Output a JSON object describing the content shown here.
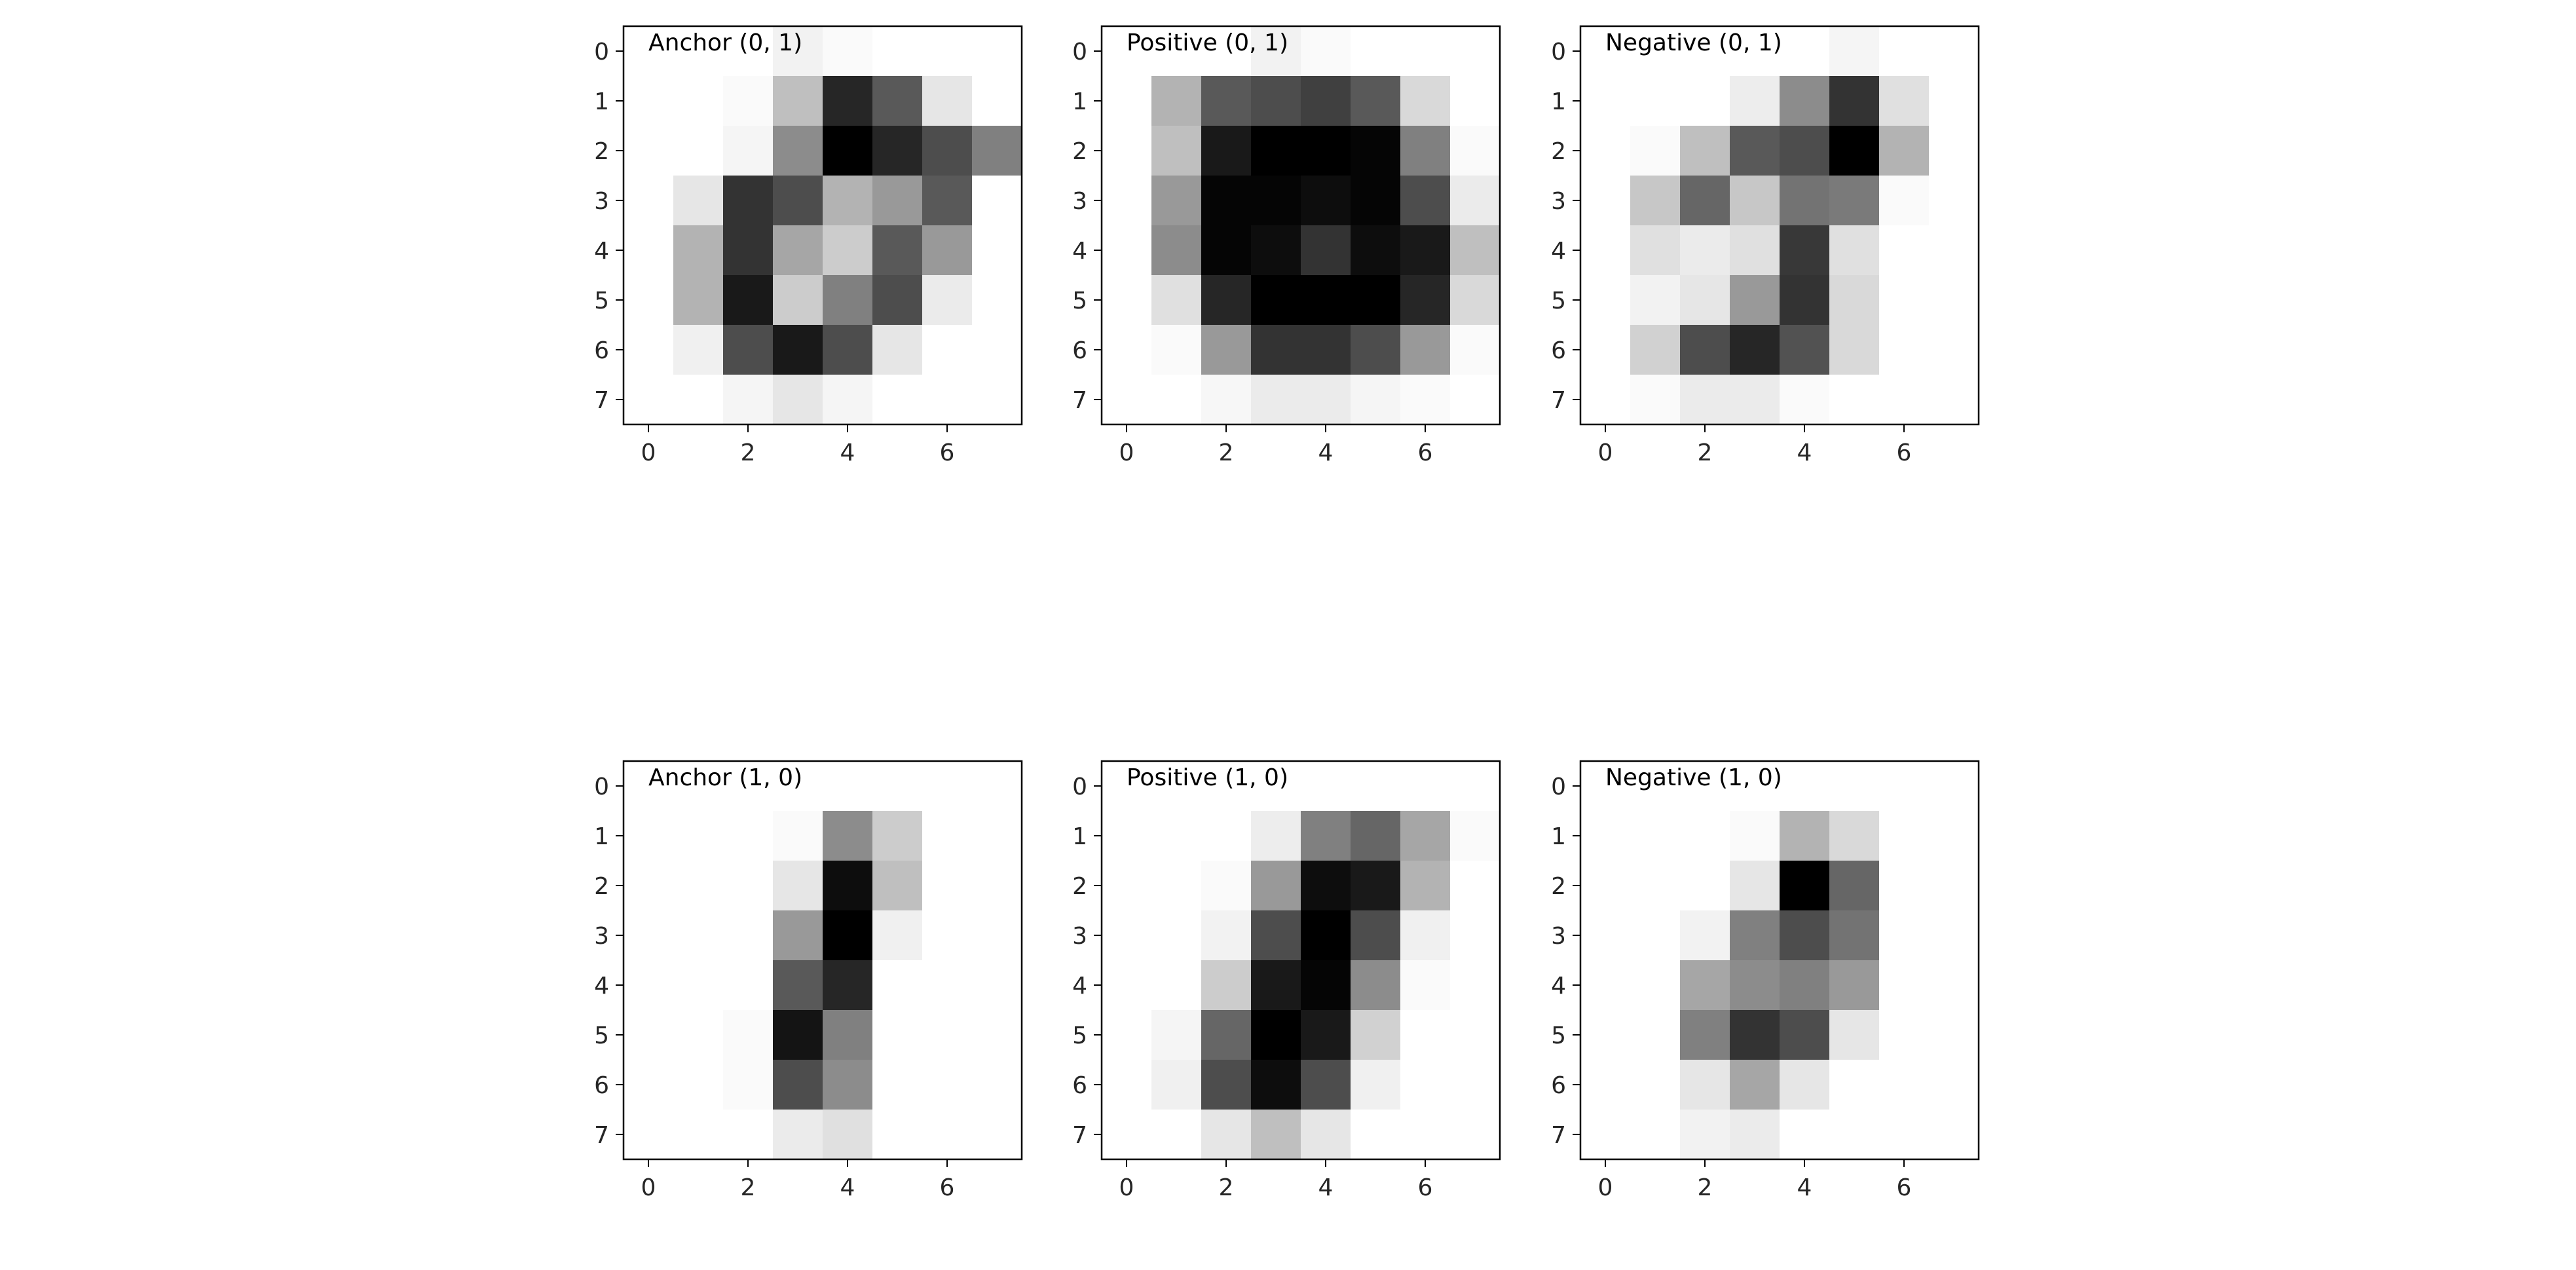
{
  "chart_data": [
    {
      "type": "heatmap",
      "title": "Anchor (0, 1)",
      "colormap": "gray_r",
      "x_ticks": [
        "0",
        "2",
        "4",
        "6"
      ],
      "y_ticks": [
        "0",
        "1",
        "2",
        "3",
        "4",
        "5",
        "6",
        "7"
      ],
      "values": [
        [
          0,
          0,
          0,
          0.05,
          0.02,
          0,
          0,
          0
        ],
        [
          0,
          0,
          0.02,
          0.25,
          0.85,
          0.65,
          0.1,
          0
        ],
        [
          0,
          0,
          0.04,
          0.45,
          1.0,
          0.85,
          0.7,
          0.5
        ],
        [
          0,
          0.1,
          0.8,
          0.7,
          0.3,
          0.4,
          0.65,
          0
        ],
        [
          0,
          0.3,
          0.8,
          0.35,
          0.2,
          0.65,
          0.4,
          0
        ],
        [
          0,
          0.3,
          0.9,
          0.2,
          0.5,
          0.7,
          0.08,
          0
        ],
        [
          0,
          0.06,
          0.7,
          0.9,
          0.7,
          0.1,
          0,
          0
        ],
        [
          0,
          0,
          0.04,
          0.1,
          0.04,
          0,
          0,
          0
        ]
      ]
    },
    {
      "type": "heatmap",
      "title": "Positive (0, 1)",
      "colormap": "gray_r",
      "x_ticks": [
        "0",
        "2",
        "4",
        "6"
      ],
      "y_ticks": [
        "0",
        "1",
        "2",
        "3",
        "4",
        "5",
        "6",
        "7"
      ],
      "values": [
        [
          0,
          0,
          0,
          0.05,
          0.02,
          0,
          0,
          0
        ],
        [
          0,
          0.3,
          0.65,
          0.7,
          0.75,
          0.65,
          0.15,
          0
        ],
        [
          0,
          0.25,
          0.9,
          1.0,
          1.0,
          0.98,
          0.5,
          0.02
        ],
        [
          0,
          0.4,
          0.98,
          0.98,
          0.95,
          0.98,
          0.7,
          0.08
        ],
        [
          0,
          0.45,
          0.98,
          0.95,
          0.8,
          0.95,
          0.9,
          0.25
        ],
        [
          0,
          0.12,
          0.85,
          1.0,
          1.0,
          1.0,
          0.85,
          0.15
        ],
        [
          0,
          0.02,
          0.4,
          0.8,
          0.8,
          0.7,
          0.4,
          0.02
        ],
        [
          0,
          0,
          0.03,
          0.08,
          0.08,
          0.04,
          0.02,
          0
        ]
      ]
    },
    {
      "type": "heatmap",
      "title": "Negative (0, 1)",
      "colormap": "gray_r",
      "x_ticks": [
        "0",
        "2",
        "4",
        "6"
      ],
      "y_ticks": [
        "0",
        "1",
        "2",
        "3",
        "4",
        "5",
        "6",
        "7"
      ],
      "values": [
        [
          0,
          0,
          0,
          0,
          0,
          0.04,
          0,
          0
        ],
        [
          0,
          0,
          0,
          0.07,
          0.45,
          0.8,
          0.12,
          0
        ],
        [
          0,
          0.02,
          0.25,
          0.65,
          0.7,
          1.0,
          0.3,
          0
        ],
        [
          0,
          0.22,
          0.6,
          0.22,
          0.55,
          0.52,
          0.02,
          0
        ],
        [
          0,
          0.12,
          0.08,
          0.12,
          0.78,
          0.12,
          0,
          0
        ],
        [
          0,
          0.05,
          0.1,
          0.4,
          0.8,
          0.15,
          0,
          0
        ],
        [
          0,
          0.18,
          0.7,
          0.85,
          0.68,
          0.15,
          0,
          0
        ],
        [
          0,
          0.02,
          0.08,
          0.08,
          0.02,
          0,
          0,
          0
        ]
      ]
    },
    {
      "type": "heatmap",
      "title": "Anchor (1, 0)",
      "colormap": "gray_r",
      "x_ticks": [
        "0",
        "2",
        "4",
        "6"
      ],
      "y_ticks": [
        "0",
        "1",
        "2",
        "3",
        "4",
        "5",
        "6",
        "7"
      ],
      "values": [
        [
          0,
          0,
          0,
          0,
          0,
          0,
          0,
          0
        ],
        [
          0,
          0,
          0,
          0.02,
          0.45,
          0.2,
          0,
          0
        ],
        [
          0,
          0,
          0,
          0.1,
          0.95,
          0.25,
          0,
          0
        ],
        [
          0,
          0,
          0,
          0.4,
          1.0,
          0.06,
          0,
          0
        ],
        [
          0,
          0,
          0,
          0.65,
          0.85,
          0,
          0,
          0
        ],
        [
          0,
          0,
          0.02,
          0.92,
          0.5,
          0,
          0,
          0
        ],
        [
          0,
          0,
          0.02,
          0.7,
          0.45,
          0,
          0,
          0
        ],
        [
          0,
          0,
          0,
          0.08,
          0.12,
          0,
          0,
          0
        ]
      ]
    },
    {
      "type": "heatmap",
      "title": "Positive (1, 0)",
      "colormap": "gray_r",
      "x_ticks": [
        "0",
        "2",
        "4",
        "6"
      ],
      "y_ticks": [
        "0",
        "1",
        "2",
        "3",
        "4",
        "5",
        "6",
        "7"
      ],
      "values": [
        [
          0,
          0,
          0,
          0,
          0,
          0,
          0,
          0
        ],
        [
          0,
          0,
          0,
          0.07,
          0.5,
          0.6,
          0.35,
          0.02
        ],
        [
          0,
          0,
          0.02,
          0.4,
          0.95,
          0.9,
          0.3,
          0
        ],
        [
          0,
          0,
          0.05,
          0.7,
          1.0,
          0.7,
          0.06,
          0
        ],
        [
          0,
          0,
          0.2,
          0.9,
          0.98,
          0.45,
          0.02,
          0
        ],
        [
          0,
          0.04,
          0.6,
          1.0,
          0.9,
          0.18,
          0,
          0
        ],
        [
          0,
          0.06,
          0.7,
          0.95,
          0.7,
          0.06,
          0,
          0
        ],
        [
          0,
          0,
          0.1,
          0.25,
          0.1,
          0,
          0,
          0
        ]
      ]
    },
    {
      "type": "heatmap",
      "title": "Negative (1, 0)",
      "colormap": "gray_r",
      "x_ticks": [
        "0",
        "2",
        "4",
        "6"
      ],
      "y_ticks": [
        "0",
        "1",
        "2",
        "3",
        "4",
        "5",
        "6",
        "7"
      ],
      "values": [
        [
          0,
          0,
          0,
          0,
          0,
          0,
          0,
          0
        ],
        [
          0,
          0,
          0,
          0.02,
          0.3,
          0.15,
          0,
          0
        ],
        [
          0,
          0,
          0,
          0.1,
          1.0,
          0.6,
          0,
          0
        ],
        [
          0,
          0,
          0.05,
          0.5,
          0.7,
          0.55,
          0,
          0
        ],
        [
          0,
          0,
          0.35,
          0.45,
          0.5,
          0.4,
          0,
          0
        ],
        [
          0,
          0,
          0.5,
          0.8,
          0.7,
          0.1,
          0,
          0
        ],
        [
          0,
          0,
          0.1,
          0.35,
          0.1,
          0,
          0,
          0
        ],
        [
          0,
          0,
          0.05,
          0.08,
          0,
          0,
          0,
          0
        ]
      ]
    }
  ]
}
